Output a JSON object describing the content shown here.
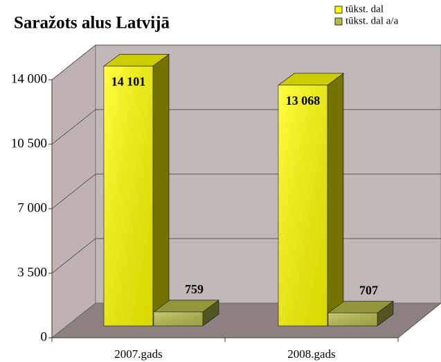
{
  "chart_data": {
    "type": "bar3d",
    "title": "Saražots alus Latvijā",
    "categories": [
      "2007.gads",
      "2008.gads"
    ],
    "series": [
      {
        "name": "tūkst. dal",
        "color": "#ffff00",
        "values": [
          14101,
          13068
        ],
        "value_labels": [
          "14 101",
          "13 068"
        ]
      },
      {
        "name": "tūkst. dal a/a",
        "color": "#b8bc48",
        "values": [
          759,
          707
        ]
      }
    ],
    "ylim": [
      0,
      14000
    ],
    "yticks": [
      0,
      {
        "value": 3500,
        "label": "3 500"
      },
      {
        "value": 7000,
        "label": "7 000"
      },
      {
        "value": 10500,
        "label": "10 500"
      },
      {
        "value": 14000,
        "label": "14 000"
      }
    ],
    "grid": true,
    "legend": "top-right"
  }
}
